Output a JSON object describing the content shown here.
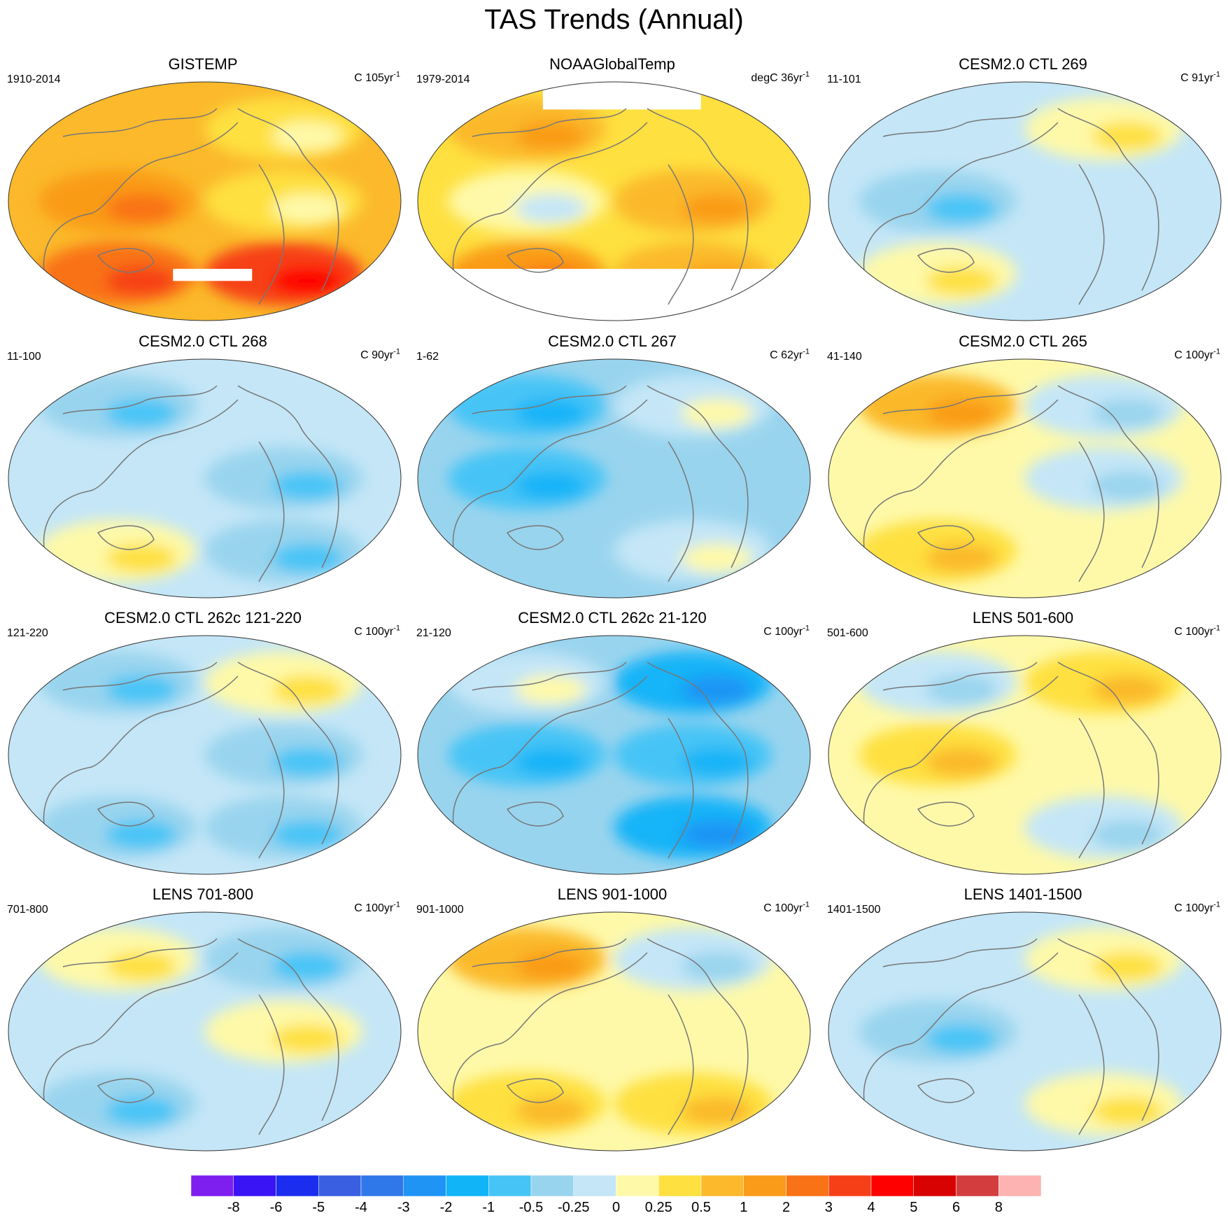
{
  "title": "TAS Trends (Annual)",
  "chart_data": {
    "type": "heatmap",
    "description_units": "trend, C per period",
    "panels": [
      {
        "title": "GISTEMP",
        "period": "1910-2014",
        "units_prefix": "C 105yr",
        "units_exp": "-1",
        "dominant_bin": "0.5 to 1",
        "pattern": [
          [
            0,
            -1
          ],
          [
            1,
            -1
          ],
          [
            2,
            3
          ]
        ],
        "missing_polar": "south-partial"
      },
      {
        "title": "NOAAGlobalTemp",
        "period": "1979-2014",
        "units_prefix": "degC 36yr",
        "units_exp": "-1",
        "dominant_bin": "0.25 to 0.5",
        "pattern": [
          [
            1,
            0
          ],
          [
            -1,
            1
          ],
          [
            2,
            1
          ]
        ],
        "missing_polar": "north-south"
      },
      {
        "title": "CESM2.0 CTL 269",
        "period": "11-101",
        "units_prefix": "C 91yr",
        "units_exp": "-1",
        "dominant_bin": "-0.25 to 0.25",
        "pattern": [
          [
            0,
            1
          ],
          [
            -1,
            0
          ],
          [
            1,
            0
          ]
        ]
      },
      {
        "title": "CESM2.0 CTL 268",
        "period": "11-100",
        "units_prefix": "C 90yr",
        "units_exp": "-1",
        "dominant_bin": "-0.25 to 0",
        "pattern": [
          [
            -1,
            0
          ],
          [
            0,
            -1
          ],
          [
            1,
            -1
          ]
        ]
      },
      {
        "title": "CESM2.0 CTL 267",
        "period": "1-62",
        "units_prefix": "C 62yr",
        "units_exp": "-1",
        "dominant_bin": "-0.5 to 0",
        "pattern": [
          [
            -1,
            1
          ],
          [
            -1,
            0
          ],
          [
            0,
            1
          ]
        ]
      },
      {
        "title": "CESM2.0 CTL 265",
        "period": "41-140",
        "units_prefix": "C 100yr",
        "units_exp": "-1",
        "dominant_bin": "0 to 0.5",
        "pattern": [
          [
            2,
            -1
          ],
          [
            0,
            -1
          ],
          [
            1,
            0
          ]
        ]
      },
      {
        "title": "CESM2.0 CTL 262c 121-220",
        "period": "121-220",
        "units_prefix": "C 100yr",
        "units_exp": "-1",
        "dominant_bin": "-0.25 to 0",
        "pattern": [
          [
            -1,
            1
          ],
          [
            0,
            -1
          ],
          [
            -1,
            -1
          ]
        ]
      },
      {
        "title": "CESM2.0 CTL 262c 21-120",
        "period": "21-120",
        "units_prefix": "C 100yr",
        "units_exp": "-1",
        "dominant_bin": "-0.5 to 0",
        "pattern": [
          [
            1,
            -2
          ],
          [
            -1,
            -1
          ],
          [
            0,
            -2
          ]
        ]
      },
      {
        "title": "LENS 501-600",
        "period": "501-600",
        "units_prefix": "C 100yr",
        "units_exp": "-1",
        "dominant_bin": "0 to 0.5",
        "pattern": [
          [
            -1,
            1
          ],
          [
            1,
            0
          ],
          [
            0,
            -1
          ]
        ]
      },
      {
        "title": "LENS 701-800",
        "period": "701-800",
        "units_prefix": "C 100yr",
        "units_exp": "-1",
        "dominant_bin": "-0.25 to 0.25",
        "pattern": [
          [
            1,
            -1
          ],
          [
            0,
            1
          ],
          [
            -1,
            0
          ]
        ]
      },
      {
        "title": "LENS 901-1000",
        "period": "901-1000",
        "units_prefix": "C 100yr",
        "units_exp": "-1",
        "dominant_bin": "0 to 0.5",
        "pattern": [
          [
            2,
            -1
          ],
          [
            0,
            0
          ],
          [
            1,
            1
          ]
        ]
      },
      {
        "title": "LENS 1401-1500",
        "period": "1401-1500",
        "units_prefix": "C 100yr",
        "units_exp": "-1",
        "dominant_bin": "-0.25 to 0.25",
        "pattern": [
          [
            0,
            1
          ],
          [
            -1,
            0
          ],
          [
            0,
            1
          ]
        ]
      }
    ],
    "colorbar": {
      "levels": [
        "-8",
        "-6",
        "-5",
        "-4",
        "-3",
        "-2",
        "-1",
        "-0.5",
        "-0.25",
        "0",
        "0.25",
        "0.5",
        "1",
        "2",
        "3",
        "4",
        "5",
        "6",
        "8"
      ],
      "colors": [
        "#7e1ff0",
        "#3a14f5",
        "#1b2ef0",
        "#3a5fe0",
        "#2f78ea",
        "#1f94f5",
        "#12b4f8",
        "#46c4f6",
        "#99d4ee",
        "#c4e6f7",
        "#fef9a9",
        "#fee040",
        "#fbb92b",
        "#fa9b19",
        "#f97215",
        "#f73f17",
        "#fe0000",
        "#d80203",
        "#d43d3e",
        "#feb3b3"
      ]
    }
  }
}
